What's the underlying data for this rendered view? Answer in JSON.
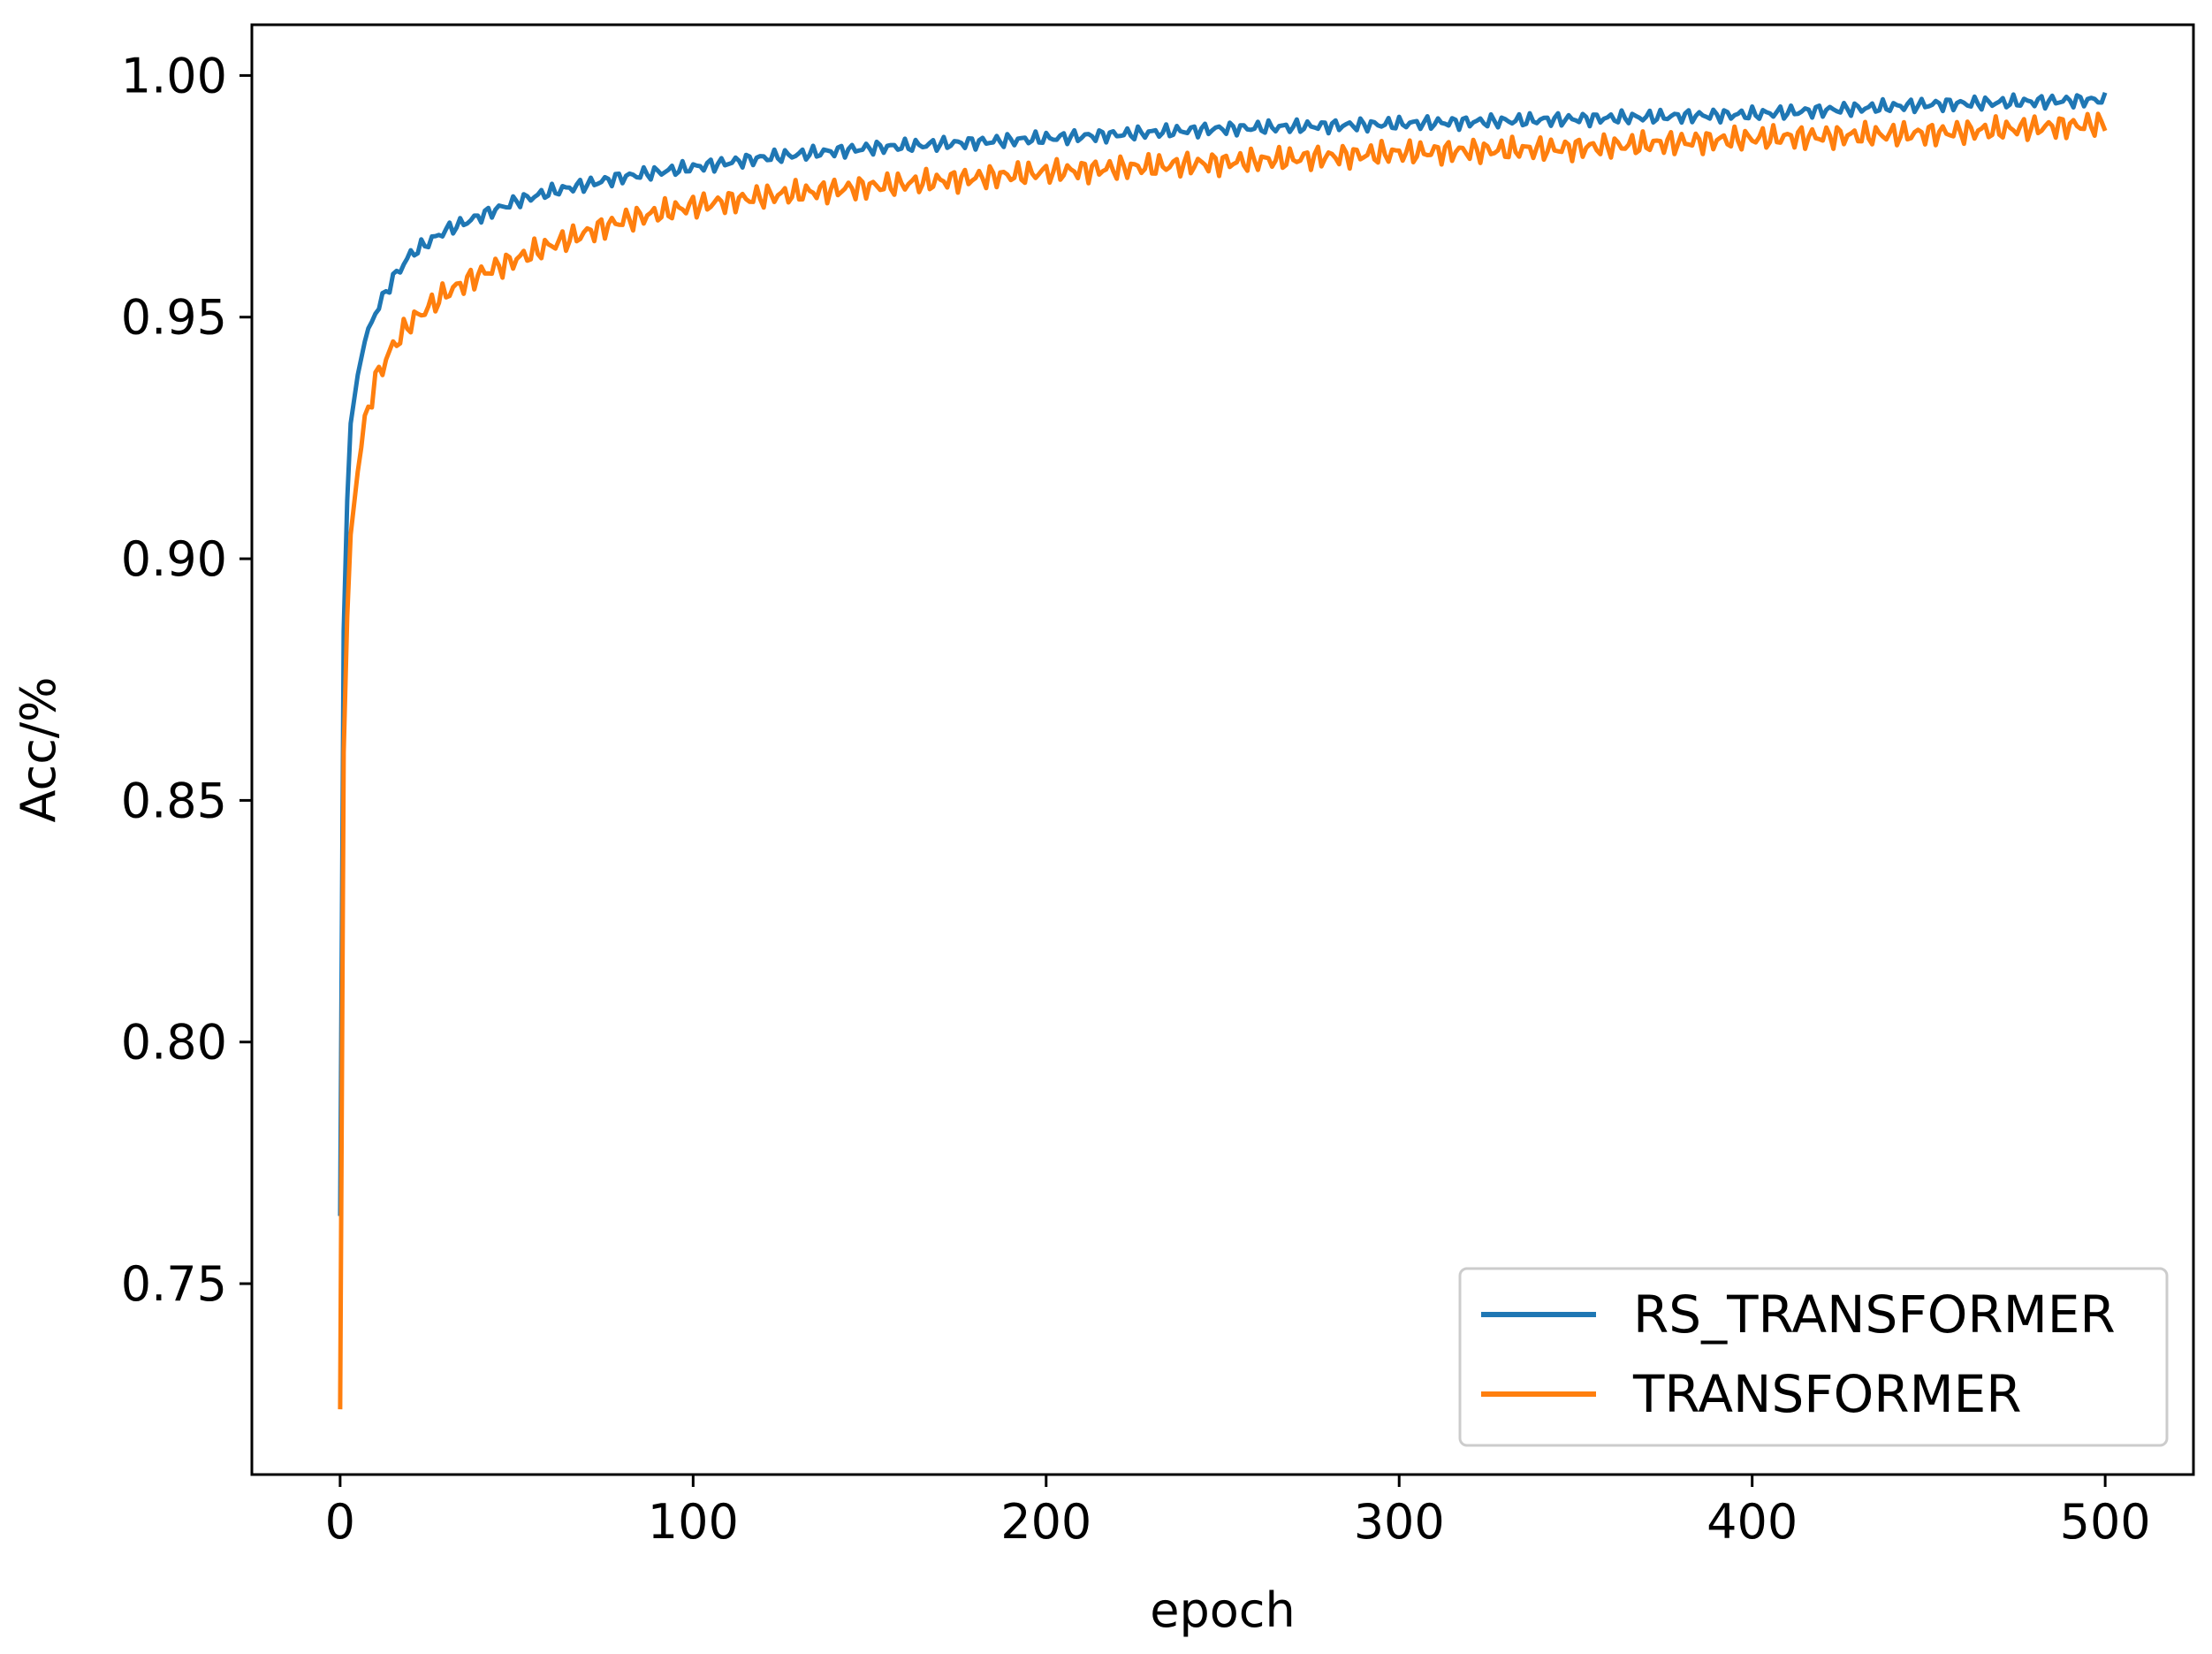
{
  "chart_data": {
    "type": "line",
    "xlabel": "epoch",
    "ylabel": "Acc/%",
    "xlim": [
      -25,
      525
    ],
    "ylim": [
      0.7105,
      1.0105
    ],
    "xticks": [
      0,
      100,
      200,
      300,
      400,
      500
    ],
    "xtick_labels": [
      "0",
      "100",
      "200",
      "300",
      "400",
      "500"
    ],
    "yticks": [
      0.75,
      0.8,
      0.85,
      0.9,
      0.95,
      1.0
    ],
    "ytick_labels": [
      "0.75",
      "0.80",
      "0.85",
      "0.90",
      "0.95",
      "1.00"
    ],
    "grid": false,
    "legend_position": "lower-right",
    "series": [
      {
        "name": "RS_TRANSFORMER",
        "color": "#1f77b4",
        "x": [
          0,
          1,
          2,
          3,
          5,
          7,
          10,
          15,
          20,
          30,
          40,
          50,
          60,
          80,
          100,
          120,
          150,
          200,
          250,
          300,
          350,
          400,
          450,
          500
        ],
        "y": [
          0.764,
          0.885,
          0.912,
          0.928,
          0.938,
          0.945,
          0.951,
          0.958,
          0.963,
          0.968,
          0.971,
          0.974,
          0.976,
          0.979,
          0.981,
          0.983,
          0.985,
          0.987,
          0.989,
          0.99,
          0.991,
          0.992,
          0.994,
          0.995
        ]
      },
      {
        "name": "TRANSFORMER",
        "color": "#ff7f0e",
        "x": [
          0,
          1,
          2,
          3,
          5,
          7,
          10,
          15,
          20,
          30,
          40,
          50,
          60,
          80,
          100,
          120,
          150,
          200,
          250,
          300,
          350,
          400,
          450,
          500
        ],
        "y": [
          0.724,
          0.86,
          0.888,
          0.905,
          0.918,
          0.928,
          0.937,
          0.944,
          0.949,
          0.955,
          0.959,
          0.962,
          0.965,
          0.97,
          0.973,
          0.975,
          0.977,
          0.98,
          0.982,
          0.984,
          0.985,
          0.987,
          0.988,
          0.99
        ]
      }
    ]
  }
}
